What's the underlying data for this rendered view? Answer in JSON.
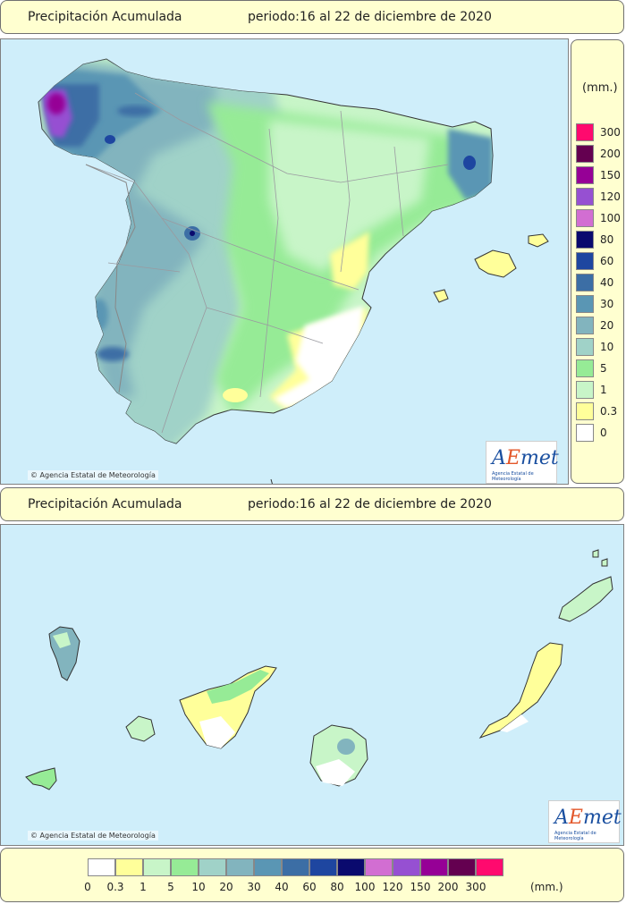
{
  "top_banner": {
    "title": "Precipitación Acumulada",
    "period": "periodo:16 al 22 de diciembre de 2020"
  },
  "mid_banner": {
    "title": "Precipitación Acumulada",
    "period": "periodo:16 al 22 de diciembre de 2020"
  },
  "credit_top": "Agencia Estatal de Meteorología",
  "credit_bottom": "Agencia Estatal de Meteorología",
  "logo": {
    "word_a": "A",
    "word_e": "E",
    "word_rest": "met",
    "subtitle": "Agencia Estatal de Meteorología"
  },
  "legend": {
    "unit": "(mm.)",
    "classes": [
      {
        "label": "0",
        "color": "#ffffff"
      },
      {
        "label": "0.3",
        "color": "#ffff9a"
      },
      {
        "label": "1",
        "color": "#c8f5c8"
      },
      {
        "label": "5",
        "color": "#96eb96"
      },
      {
        "label": "10",
        "color": "#a0d2c8"
      },
      {
        "label": "20",
        "color": "#82b4be"
      },
      {
        "label": "30",
        "color": "#5a96b4"
      },
      {
        "label": "40",
        "color": "#3c6ea5"
      },
      {
        "label": "60",
        "color": "#1e46a0"
      },
      {
        "label": "80",
        "color": "#0a0a6e"
      },
      {
        "label": "100",
        "color": "#d26ed2"
      },
      {
        "label": "120",
        "color": "#9650d2"
      },
      {
        "label": "150",
        "color": "#960096"
      },
      {
        "label": "200",
        "color": "#640050"
      },
      {
        "label": "300",
        "color": "#ff0a6e"
      }
    ]
  },
  "colors": {
    "sea": "#cfeefa",
    "banner": "#ffffd0",
    "boundary": "#9a9aa0"
  }
}
